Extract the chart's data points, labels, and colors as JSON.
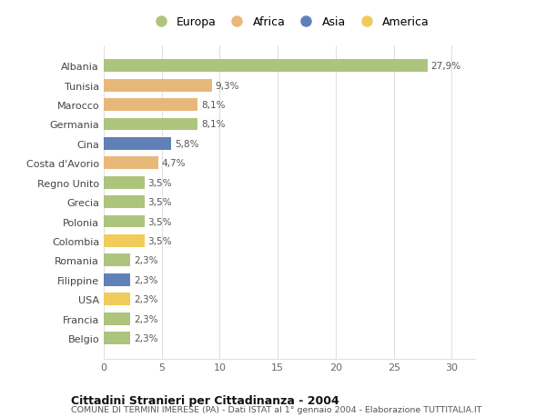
{
  "categories": [
    "Albania",
    "Tunisia",
    "Marocco",
    "Germania",
    "Cina",
    "Costa d'Avorio",
    "Regno Unito",
    "Grecia",
    "Polonia",
    "Colombia",
    "Romania",
    "Filippine",
    "USA",
    "Francia",
    "Belgio"
  ],
  "values": [
    27.9,
    9.3,
    8.1,
    8.1,
    5.8,
    4.7,
    3.5,
    3.5,
    3.5,
    3.5,
    2.3,
    2.3,
    2.3,
    2.3,
    2.3
  ],
  "labels": [
    "27,9%",
    "9,3%",
    "8,1%",
    "8,1%",
    "5,8%",
    "4,7%",
    "3,5%",
    "3,5%",
    "3,5%",
    "3,5%",
    "2,3%",
    "2,3%",
    "2,3%",
    "2,3%",
    "2,3%"
  ],
  "continent": [
    "Europa",
    "Africa",
    "Africa",
    "Europa",
    "Asia",
    "Africa",
    "Europa",
    "Europa",
    "Europa",
    "America",
    "Europa",
    "Asia",
    "America",
    "Europa",
    "Europa"
  ],
  "colors": {
    "Europa": "#adc47c",
    "Africa": "#e8b87a",
    "Asia": "#6080b8",
    "America": "#f0cc5a"
  },
  "legend_labels": [
    "Europa",
    "Africa",
    "Asia",
    "America"
  ],
  "legend_colors": [
    "#adc47c",
    "#e8b87a",
    "#6080b8",
    "#f0cc5a"
  ],
  "title": "Cittadini Stranieri per Cittadinanza - 2004",
  "subtitle": "COMUNE DI TERMINI IMERESE (PA) - Dati ISTAT al 1° gennaio 2004 - Elaborazione TUTTITALIA.IT",
  "xlim": [
    0,
    32
  ],
  "xticks": [
    0,
    5,
    10,
    15,
    20,
    25,
    30
  ],
  "background_color": "#ffffff",
  "bar_height": 0.65,
  "grid_color": "#e0e0e0"
}
